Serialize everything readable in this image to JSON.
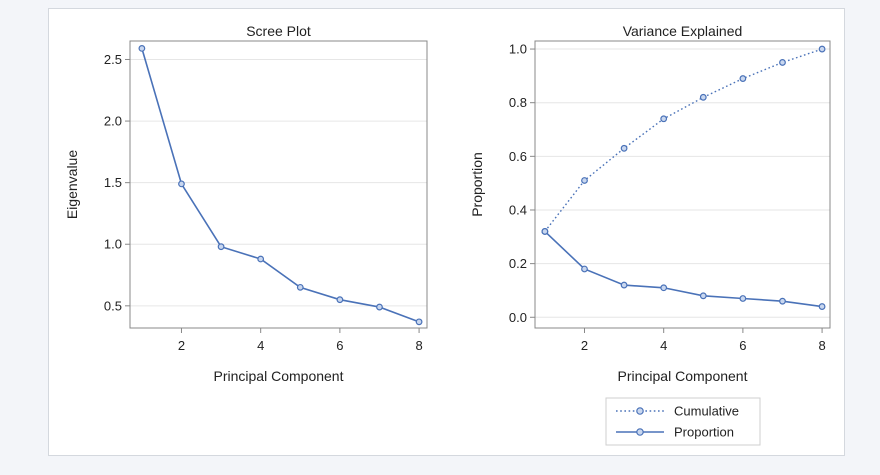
{
  "chart_data": [
    {
      "type": "line",
      "title": "Scree Plot",
      "xlabel": "Principal Component",
      "ylabel": "Eigenvalue",
      "x": [
        1,
        2,
        3,
        4,
        5,
        6,
        7,
        8
      ],
      "xticks": [
        2,
        4,
        6,
        8
      ],
      "yticks": [
        0.5,
        1.0,
        1.5,
        2.0,
        2.5
      ],
      "xlim": [
        0.7,
        8.2
      ],
      "ylim": [
        0.32,
        2.65
      ],
      "grid": true,
      "series": [
        {
          "values": [
            2.59,
            1.49,
            0.98,
            0.88,
            0.65,
            0.55,
            0.49,
            0.37
          ]
        }
      ]
    },
    {
      "type": "line",
      "title": "Variance Explained",
      "xlabel": "Principal Component",
      "ylabel": "Proportion",
      "x": [
        1,
        2,
        3,
        4,
        5,
        6,
        7,
        8
      ],
      "xticks": [
        2,
        4,
        6,
        8
      ],
      "yticks": [
        0.0,
        0.2,
        0.4,
        0.6,
        0.8,
        1.0
      ],
      "xlim": [
        0.75,
        8.2
      ],
      "ylim": [
        -0.04,
        1.03
      ],
      "grid": true,
      "legend_position": "bottom-right outside",
      "series": [
        {
          "name": "Cumulative",
          "style": "dotted",
          "values": [
            0.32,
            0.51,
            0.63,
            0.74,
            0.82,
            0.89,
            0.95,
            1.0
          ]
        },
        {
          "name": "Proportion",
          "style": "solid",
          "values": [
            0.32,
            0.18,
            0.12,
            0.11,
            0.08,
            0.07,
            0.06,
            0.04
          ]
        }
      ]
    }
  ],
  "colors": {
    "line": "#4a72b8",
    "grid": "#e6e6e6",
    "axis": "#888888",
    "text": "#222222"
  }
}
